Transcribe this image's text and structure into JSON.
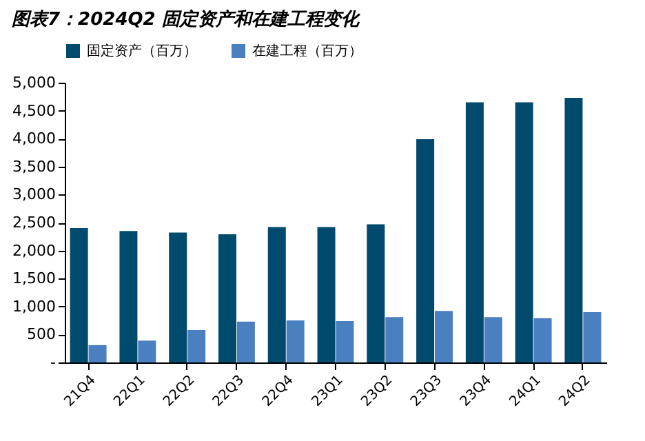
{
  "chart_data": {
    "type": "bar",
    "title": "图表7：2024Q2 固定资产和在建工程变化",
    "categories": [
      "21Q4",
      "22Q1",
      "22Q2",
      "22Q3",
      "22Q4",
      "23Q1",
      "23Q2",
      "23Q3",
      "23Q4",
      "24Q1",
      "24Q2"
    ],
    "series": [
      {
        "name": "固定资产（百万）",
        "color": "#004a6e",
        "values": [
          2400,
          2350,
          2320,
          2290,
          2420,
          2420,
          2470,
          3990,
          4650,
          4650,
          4730
        ]
      },
      {
        "name": "在建工程（百万）",
        "color": "#4a80bf",
        "values": [
          310,
          390,
          580,
          730,
          750,
          740,
          810,
          920,
          810,
          790,
          900
        ]
      }
    ],
    "ylim": [
      0,
      5000
    ],
    "yticks": [
      {
        "value": 0,
        "label": "-"
      },
      500,
      {
        "value": 1000,
        "label": "1,000"
      },
      {
        "value": 1500,
        "label": "1,500"
      },
      {
        "value": 2000,
        "label": "2,000"
      },
      {
        "value": 2500,
        "label": "2,500"
      },
      {
        "value": 3000,
        "label": "3,000"
      },
      {
        "value": 3500,
        "label": "3,500"
      },
      {
        "value": 4000,
        "label": "4,000"
      },
      {
        "value": 4500,
        "label": "4,500"
      },
      {
        "value": 5000,
        "label": "5,000"
      }
    ],
    "grid": false,
    "legend": "top"
  }
}
